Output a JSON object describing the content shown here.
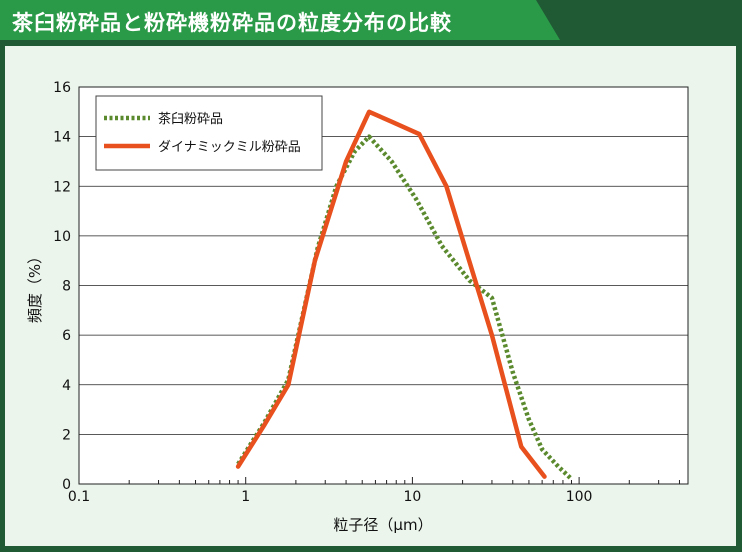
{
  "title": "茶臼粉砕品と粉砕機粉砕品の粒度分布の比較",
  "colors": {
    "frame": "#1f5a34",
    "title_bar": "#2b9a48",
    "panel_bg": "#ebf5ec",
    "series_teaMill": "#5b8a2e",
    "series_dynamicMill": "#e8501d"
  },
  "chart_data": {
    "type": "line",
    "title": "茶臼粉砕品と粉砕機粉砕品の粒度分布の比較",
    "xlabel": "粒子径（μm）",
    "ylabel": "頻度（%）",
    "xscale": "log",
    "xlim": [
      0.1,
      450
    ],
    "ylim": [
      0,
      16
    ],
    "xticks": [
      "0.1",
      "1",
      "10",
      "100"
    ],
    "yticks": [
      "0",
      "2",
      "4",
      "6",
      "8",
      "10",
      "12",
      "14",
      "16"
    ],
    "grid": "horizontal",
    "legend_position": "top-left",
    "series": [
      {
        "name": "茶臼粉砕品",
        "style": "dotted",
        "points": [
          [
            0.9,
            0.8
          ],
          [
            1.3,
            2.5
          ],
          [
            1.8,
            4.2
          ],
          [
            2.7,
            9.5
          ],
          [
            3.5,
            12.0
          ],
          [
            4.5,
            13.4
          ],
          [
            5.5,
            14.0
          ],
          [
            7.5,
            13.0
          ],
          [
            10.5,
            11.5
          ],
          [
            15,
            9.6
          ],
          [
            22,
            8.2
          ],
          [
            30,
            7.5
          ],
          [
            40,
            4.5
          ],
          [
            50,
            2.6
          ],
          [
            60,
            1.4
          ],
          [
            75,
            0.7
          ],
          [
            90,
            0.2
          ]
        ]
      },
      {
        "name": "ダイナミックミル粉砕品",
        "style": "solid",
        "points": [
          [
            0.9,
            0.7
          ],
          [
            1.3,
            2.4
          ],
          [
            1.8,
            4.0
          ],
          [
            2.6,
            9.0
          ],
          [
            4.0,
            13.0
          ],
          [
            5.5,
            15.0
          ],
          [
            7.5,
            14.6
          ],
          [
            11,
            14.1
          ],
          [
            16,
            12.0
          ],
          [
            30,
            6.0
          ],
          [
            45,
            1.5
          ],
          [
            62,
            0.3
          ]
        ]
      }
    ]
  }
}
